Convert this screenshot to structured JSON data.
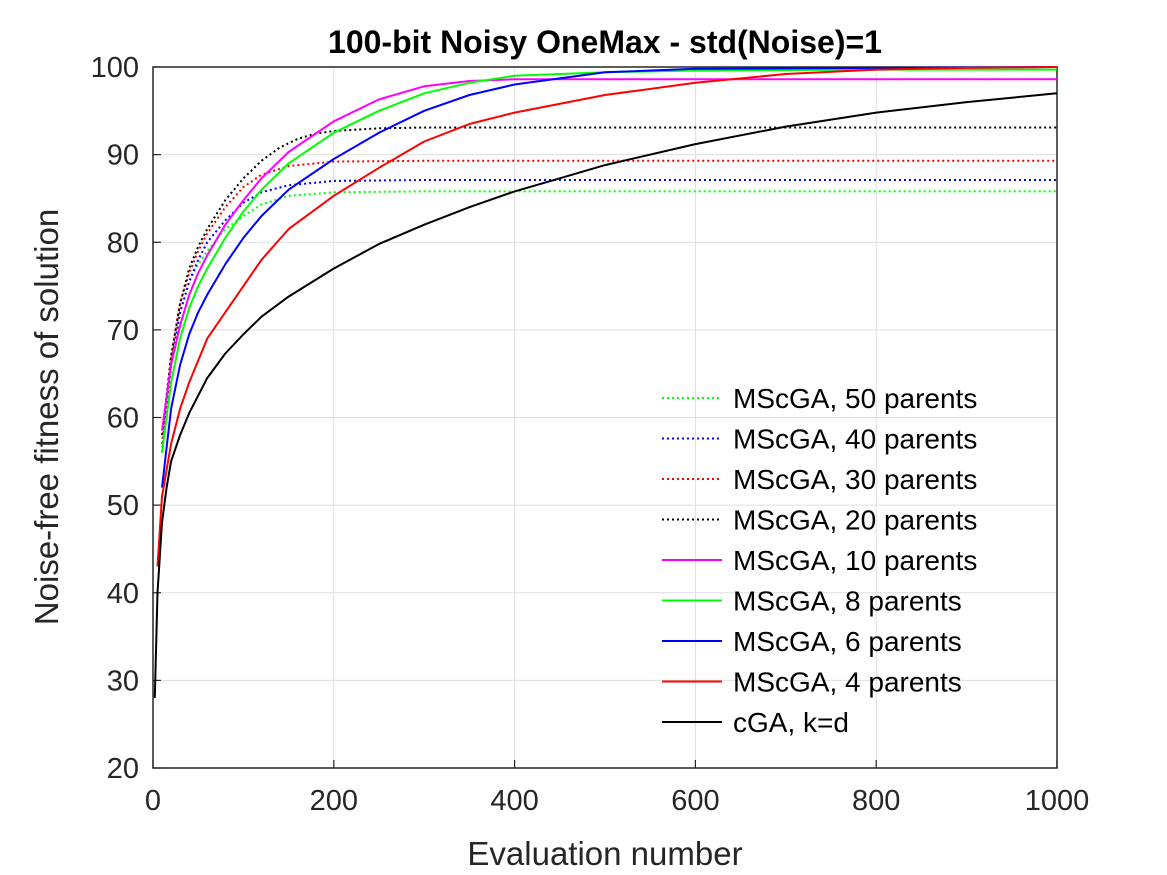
{
  "chart_data": {
    "type": "line",
    "title": "100-bit Noisy OneMax - std(Noise)=1",
    "xlabel": "Evaluation number",
    "ylabel": "Noise-free fitness of solution",
    "xlim": [
      0,
      1000
    ],
    "ylim": [
      20,
      100
    ],
    "xticks": [
      "0",
      "200",
      "400",
      "600",
      "800",
      "1000"
    ],
    "yticks": [
      "20",
      "30",
      "40",
      "50",
      "60",
      "70",
      "80",
      "90",
      "100"
    ],
    "grid": true,
    "legend_position": "bottom-right",
    "series": [
      {
        "name": "MScGA, 50 parents",
        "color": "#00ff00",
        "style": "dotted",
        "x": [
          10,
          20,
          30,
          40,
          50,
          60,
          80,
          100,
          120,
          150,
          200,
          300,
          400,
          600,
          800,
          1000
        ],
        "y": [
          56,
          66,
          72,
          75.5,
          77.5,
          79,
          81.5,
          83,
          84.3,
          85.3,
          85.7,
          85.8,
          85.8,
          85.8,
          85.8,
          85.8
        ]
      },
      {
        "name": "MScGA, 40 parents",
        "color": "#0000ff",
        "style": "dotted",
        "x": [
          10,
          20,
          30,
          40,
          50,
          60,
          80,
          100,
          120,
          150,
          200,
          300,
          400,
          600,
          800,
          1000
        ],
        "y": [
          56,
          66,
          72,
          75.5,
          78,
          80,
          82.5,
          84.5,
          85.7,
          86.5,
          87,
          87.1,
          87.1,
          87.1,
          87.1,
          87.1
        ]
      },
      {
        "name": "MScGA, 30 parents",
        "color": "#ff0000",
        "style": "dotted",
        "x": [
          10,
          20,
          30,
          40,
          50,
          60,
          80,
          100,
          120,
          150,
          200,
          300,
          400,
          600,
          800,
          1000
        ],
        "y": [
          57,
          67,
          73,
          76.5,
          79,
          81,
          84,
          86.3,
          87.7,
          88.7,
          89.2,
          89.3,
          89.3,
          89.3,
          89.3,
          89.3
        ]
      },
      {
        "name": "MScGA, 20 parents",
        "color": "#000000",
        "style": "dotted",
        "x": [
          10,
          20,
          30,
          40,
          50,
          60,
          80,
          100,
          120,
          140,
          160,
          180,
          200,
          250,
          300,
          400,
          600,
          800,
          1000
        ],
        "y": [
          58,
          67,
          73,
          77,
          79.5,
          81.5,
          84.8,
          87.3,
          89.3,
          90.8,
          91.8,
          92.4,
          92.7,
          93,
          93.1,
          93.1,
          93.1,
          93.1,
          93.1
        ]
      },
      {
        "name": "MScGA, 10 parents",
        "color": "#ff00ff",
        "style": "solid",
        "x": [
          10,
          20,
          30,
          40,
          50,
          60,
          80,
          100,
          120,
          150,
          200,
          250,
          300,
          350,
          400,
          500,
          600,
          800,
          1000
        ],
        "y": [
          58.5,
          66,
          70.5,
          74,
          76.5,
          78.5,
          82,
          84.8,
          87.3,
          90.3,
          93.8,
          96.3,
          97.8,
          98.4,
          98.6,
          98.6,
          98.6,
          98.6,
          98.6
        ]
      },
      {
        "name": "MScGA, 8 parents",
        "color": "#00ff00",
        "style": "solid",
        "x": [
          10,
          20,
          30,
          40,
          50,
          60,
          80,
          100,
          120,
          150,
          200,
          250,
          300,
          350,
          400,
          500,
          600,
          800,
          1000
        ],
        "y": [
          56,
          64,
          69,
          72.5,
          75,
          77,
          80.5,
          83.5,
          86,
          89,
          92.5,
          95,
          97,
          98.2,
          99,
          99.4,
          99.6,
          99.7,
          99.7
        ]
      },
      {
        "name": "MScGA, 6 parents",
        "color": "#0000ff",
        "style": "solid",
        "x": [
          10,
          20,
          30,
          40,
          50,
          60,
          80,
          100,
          120,
          150,
          200,
          250,
          300,
          350,
          400,
          500,
          600,
          800,
          1000
        ],
        "y": [
          52,
          61,
          66,
          69.5,
          72,
          74,
          77.5,
          80.5,
          83,
          86,
          89.5,
          92.5,
          95,
          96.8,
          98,
          99.4,
          99.8,
          99.9,
          100
        ]
      },
      {
        "name": "MScGA, 4 parents",
        "color": "#ff0000",
        "style": "solid",
        "x": [
          5,
          10,
          20,
          30,
          40,
          50,
          60,
          80,
          100,
          120,
          150,
          200,
          250,
          300,
          350,
          400,
          500,
          600,
          700,
          800,
          900,
          1000
        ],
        "y": [
          43,
          51,
          57,
          61,
          64,
          66.5,
          69,
          72,
          75,
          78,
          81.5,
          85.3,
          88.5,
          91.5,
          93.5,
          94.8,
          96.8,
          98.2,
          99.2,
          99.7,
          99.9,
          100
        ]
      },
      {
        "name": "cGA, k=d",
        "color": "#000000",
        "style": "solid",
        "x": [
          2,
          5,
          10,
          15,
          20,
          30,
          40,
          50,
          60,
          80,
          100,
          120,
          150,
          200,
          250,
          300,
          350,
          400,
          450,
          500,
          600,
          700,
          800,
          900,
          1000
        ],
        "y": [
          28,
          40,
          48,
          52,
          55,
          58,
          60.5,
          62.5,
          64.5,
          67.3,
          69.5,
          71.5,
          73.8,
          77,
          79.8,
          82,
          84,
          85.8,
          87.3,
          88.8,
          91.2,
          93.2,
          94.8,
          96,
          97
        ]
      }
    ]
  }
}
